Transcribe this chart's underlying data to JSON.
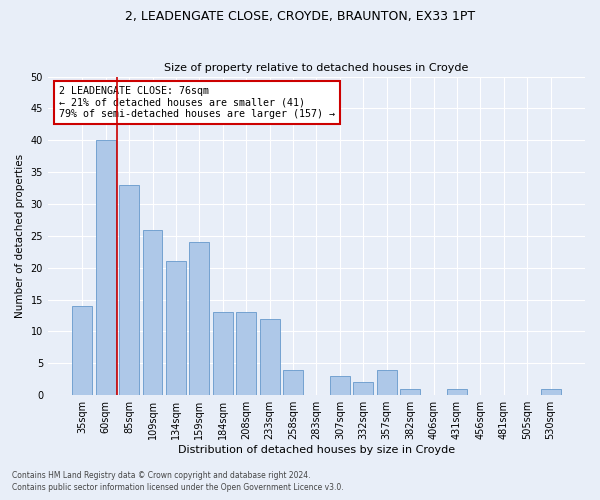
{
  "title1": "2, LEADENGATE CLOSE, CROYDE, BRAUNTON, EX33 1PT",
  "title2": "Size of property relative to detached houses in Croyde",
  "xlabel": "Distribution of detached houses by size in Croyde",
  "ylabel": "Number of detached properties",
  "categories": [
    "35sqm",
    "60sqm",
    "85sqm",
    "109sqm",
    "134sqm",
    "159sqm",
    "184sqm",
    "208sqm",
    "233sqm",
    "258sqm",
    "283sqm",
    "307sqm",
    "332sqm",
    "357sqm",
    "382sqm",
    "406sqm",
    "431sqm",
    "456sqm",
    "481sqm",
    "505sqm",
    "530sqm"
  ],
  "values": [
    14,
    40,
    33,
    26,
    21,
    24,
    13,
    13,
    12,
    4,
    0,
    3,
    2,
    4,
    1,
    0,
    1,
    0,
    0,
    0,
    1
  ],
  "bar_color": "#aec8e8",
  "bar_edge_color": "#6699cc",
  "vline_x": 1.5,
  "vline_color": "#cc0000",
  "annotation_text": "2 LEADENGATE CLOSE: 76sqm\n← 21% of detached houses are smaller (41)\n79% of semi-detached houses are larger (157) →",
  "annotation_box_color": "#ffffff",
  "annotation_edge_color": "#cc0000",
  "ylim": [
    0,
    50
  ],
  "yticks": [
    0,
    5,
    10,
    15,
    20,
    25,
    30,
    35,
    40,
    45,
    50
  ],
  "footer1": "Contains HM Land Registry data © Crown copyright and database right 2024.",
  "footer2": "Contains public sector information licensed under the Open Government Licence v3.0.",
  "bg_color": "#e8eef8",
  "plot_bg_color": "#e8eef8"
}
